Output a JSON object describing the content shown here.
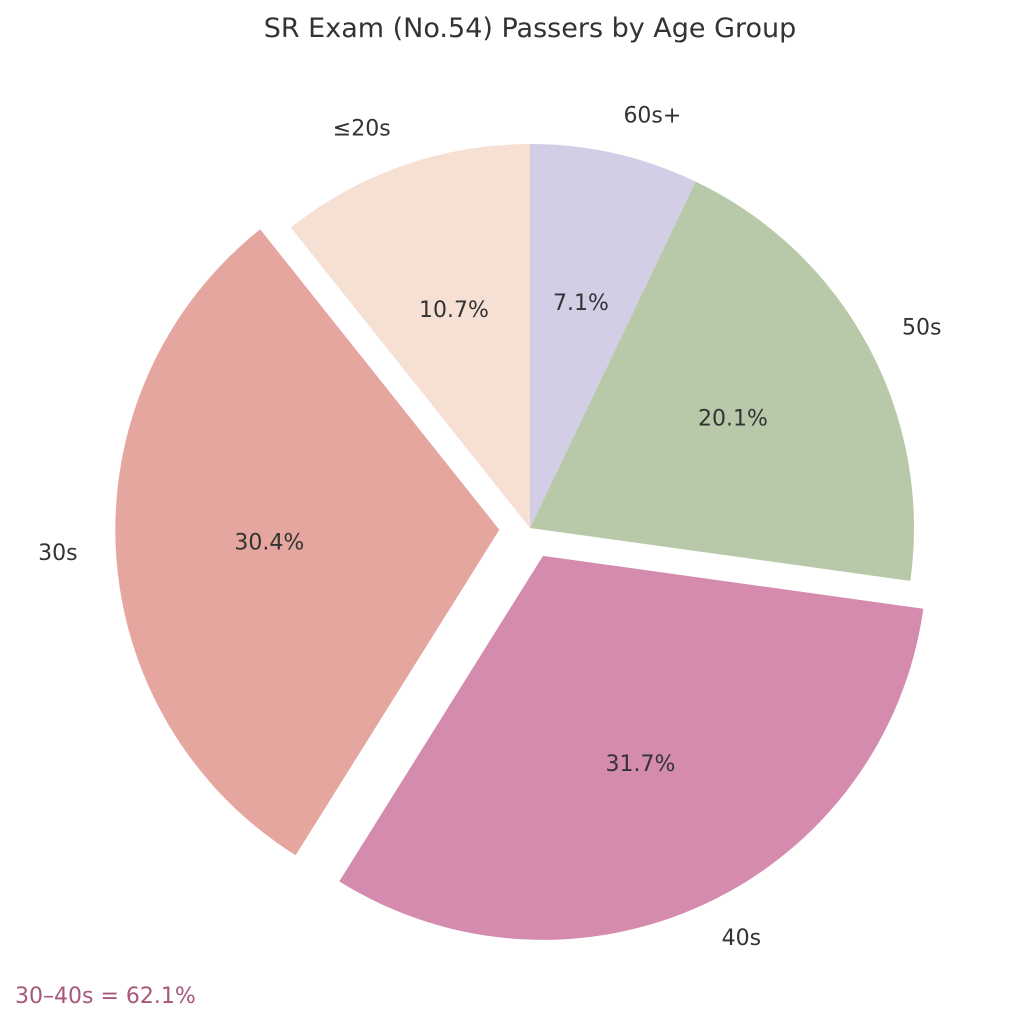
{
  "chart_data": {
    "type": "pie",
    "title": "SR Exam (No.54) Passers by Age Group",
    "start_angle_deg": 90,
    "direction": "clockwise",
    "slices": [
      {
        "label": "60s+",
        "value": 7.1,
        "value_label": "7.1%",
        "color": "#d4cde6",
        "exploded": false
      },
      {
        "label": "50s",
        "value": 20.1,
        "value_label": "20.1%",
        "color": "#b8c9a9",
        "exploded": false
      },
      {
        "label": "40s",
        "value": 31.7,
        "value_label": "31.7%",
        "color": "#d48bad",
        "exploded": true
      },
      {
        "label": "30s",
        "value": 30.4,
        "value_label": "30.4%",
        "color": "#e6a6a0",
        "exploded": true
      },
      {
        "label": "≤20s",
        "value": 10.7,
        "value_label": "10.7%",
        "color": "#f5e0d3",
        "exploded": false
      }
    ],
    "annotation": {
      "text": "30–40s = 62.1%",
      "color": "#a8577c"
    }
  }
}
